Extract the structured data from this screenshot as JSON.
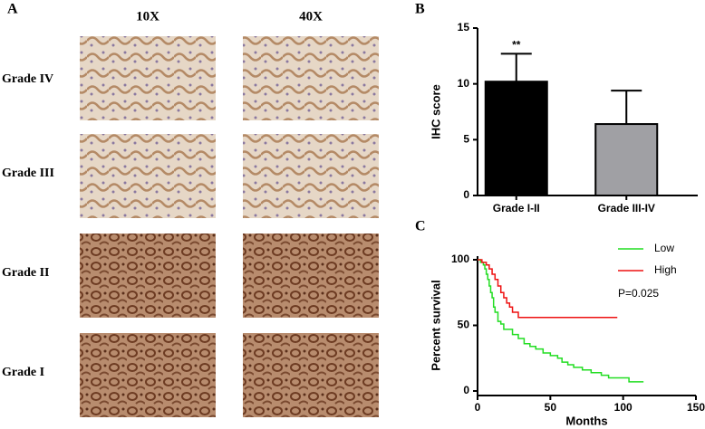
{
  "panel_a": {
    "label": "A",
    "columns": [
      "10X",
      "40X"
    ],
    "rows": [
      "Grade IV",
      "Grade III",
      "Grade II",
      "Grade I"
    ]
  },
  "chart_data": [
    {
      "type": "bar",
      "panel_label": "B",
      "ylabel": "IHC score",
      "categories": [
        "Grade I-II",
        "Grade III-IV"
      ],
      "values": [
        10.2,
        6.4
      ],
      "errors": [
        2.5,
        3.0
      ],
      "colors": [
        "#000000",
        "#a0a0a4"
      ],
      "annotations": [
        {
          "text": "**",
          "category": 0
        }
      ],
      "ylim": [
        0,
        15
      ],
      "yticks": [
        0,
        5,
        10,
        15
      ]
    },
    {
      "type": "survival",
      "panel_label": "C",
      "xlabel": "Months",
      "ylabel": "Percent survival",
      "xlim": [
        0,
        150
      ],
      "xticks": [
        0,
        50,
        100,
        150
      ],
      "ylim": [
        0,
        100
      ],
      "yticks": [
        0,
        50,
        100
      ],
      "legend": "upper right",
      "annotation": "P=0.025",
      "series": [
        {
          "name": "Low",
          "color": "#22dd22",
          "x": [
            0,
            2,
            4,
            5,
            6,
            7,
            8,
            9,
            10,
            11,
            12,
            14,
            16,
            18,
            24,
            28,
            32,
            36,
            40,
            45,
            50,
            55,
            58,
            62,
            66,
            72,
            78,
            85,
            90,
            104,
            114
          ],
          "values": [
            100,
            98,
            96,
            93,
            89,
            85,
            80,
            75,
            71,
            64,
            60,
            53,
            51,
            47,
            43,
            40,
            36,
            34,
            32,
            29,
            27,
            25,
            22,
            20,
            18,
            16,
            14,
            12,
            10,
            7,
            7
          ]
        },
        {
          "name": "High",
          "color": "#ee1111",
          "x": [
            0,
            3,
            6,
            8,
            10,
            12,
            14,
            16,
            18,
            20,
            22,
            24,
            28,
            96
          ],
          "values": [
            100,
            98,
            96,
            93,
            89,
            85,
            80,
            75,
            71,
            67,
            64,
            60,
            56,
            56
          ]
        }
      ]
    }
  ]
}
